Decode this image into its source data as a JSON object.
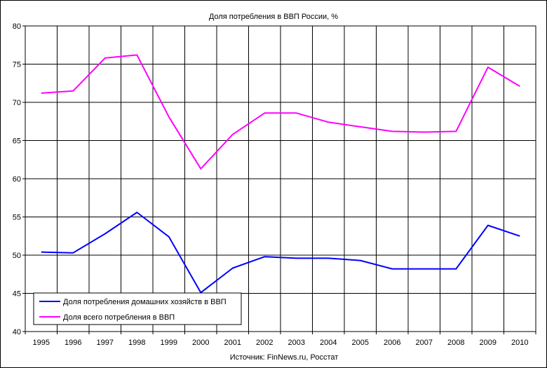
{
  "chart_data": {
    "type": "line",
    "title": "Доля потребления в ВВП России, %",
    "source_note": "Источник: FinNews.ru, Росстат",
    "x": [
      "1995",
      "1996",
      "1997",
      "1998",
      "1999",
      "2000",
      "2001",
      "2002",
      "2003",
      "2004",
      "2005",
      "2006",
      "2007",
      "2008",
      "2009",
      "2010"
    ],
    "ylim": [
      40,
      80
    ],
    "yticks": [
      40,
      45,
      50,
      55,
      60,
      65,
      70,
      75,
      80
    ],
    "grid": true,
    "legend_position": "bottom-left",
    "series": [
      {
        "name": "Доля потребления домашних хозяйств в ВВП",
        "color": "#0000ff",
        "values": [
          50.4,
          50.3,
          52.8,
          55.6,
          52.4,
          45.1,
          48.3,
          49.8,
          49.6,
          49.6,
          49.3,
          48.2,
          48.2,
          48.2,
          53.9,
          52.5
        ]
      },
      {
        "name": "Доля всего потребления в ВВП",
        "color": "#ff00ff",
        "values": [
          71.2,
          71.5,
          75.8,
          76.2,
          68.1,
          61.3,
          65.8,
          68.6,
          68.6,
          67.4,
          66.8,
          66.2,
          66.1,
          66.2,
          74.6,
          72.1
        ]
      }
    ]
  }
}
